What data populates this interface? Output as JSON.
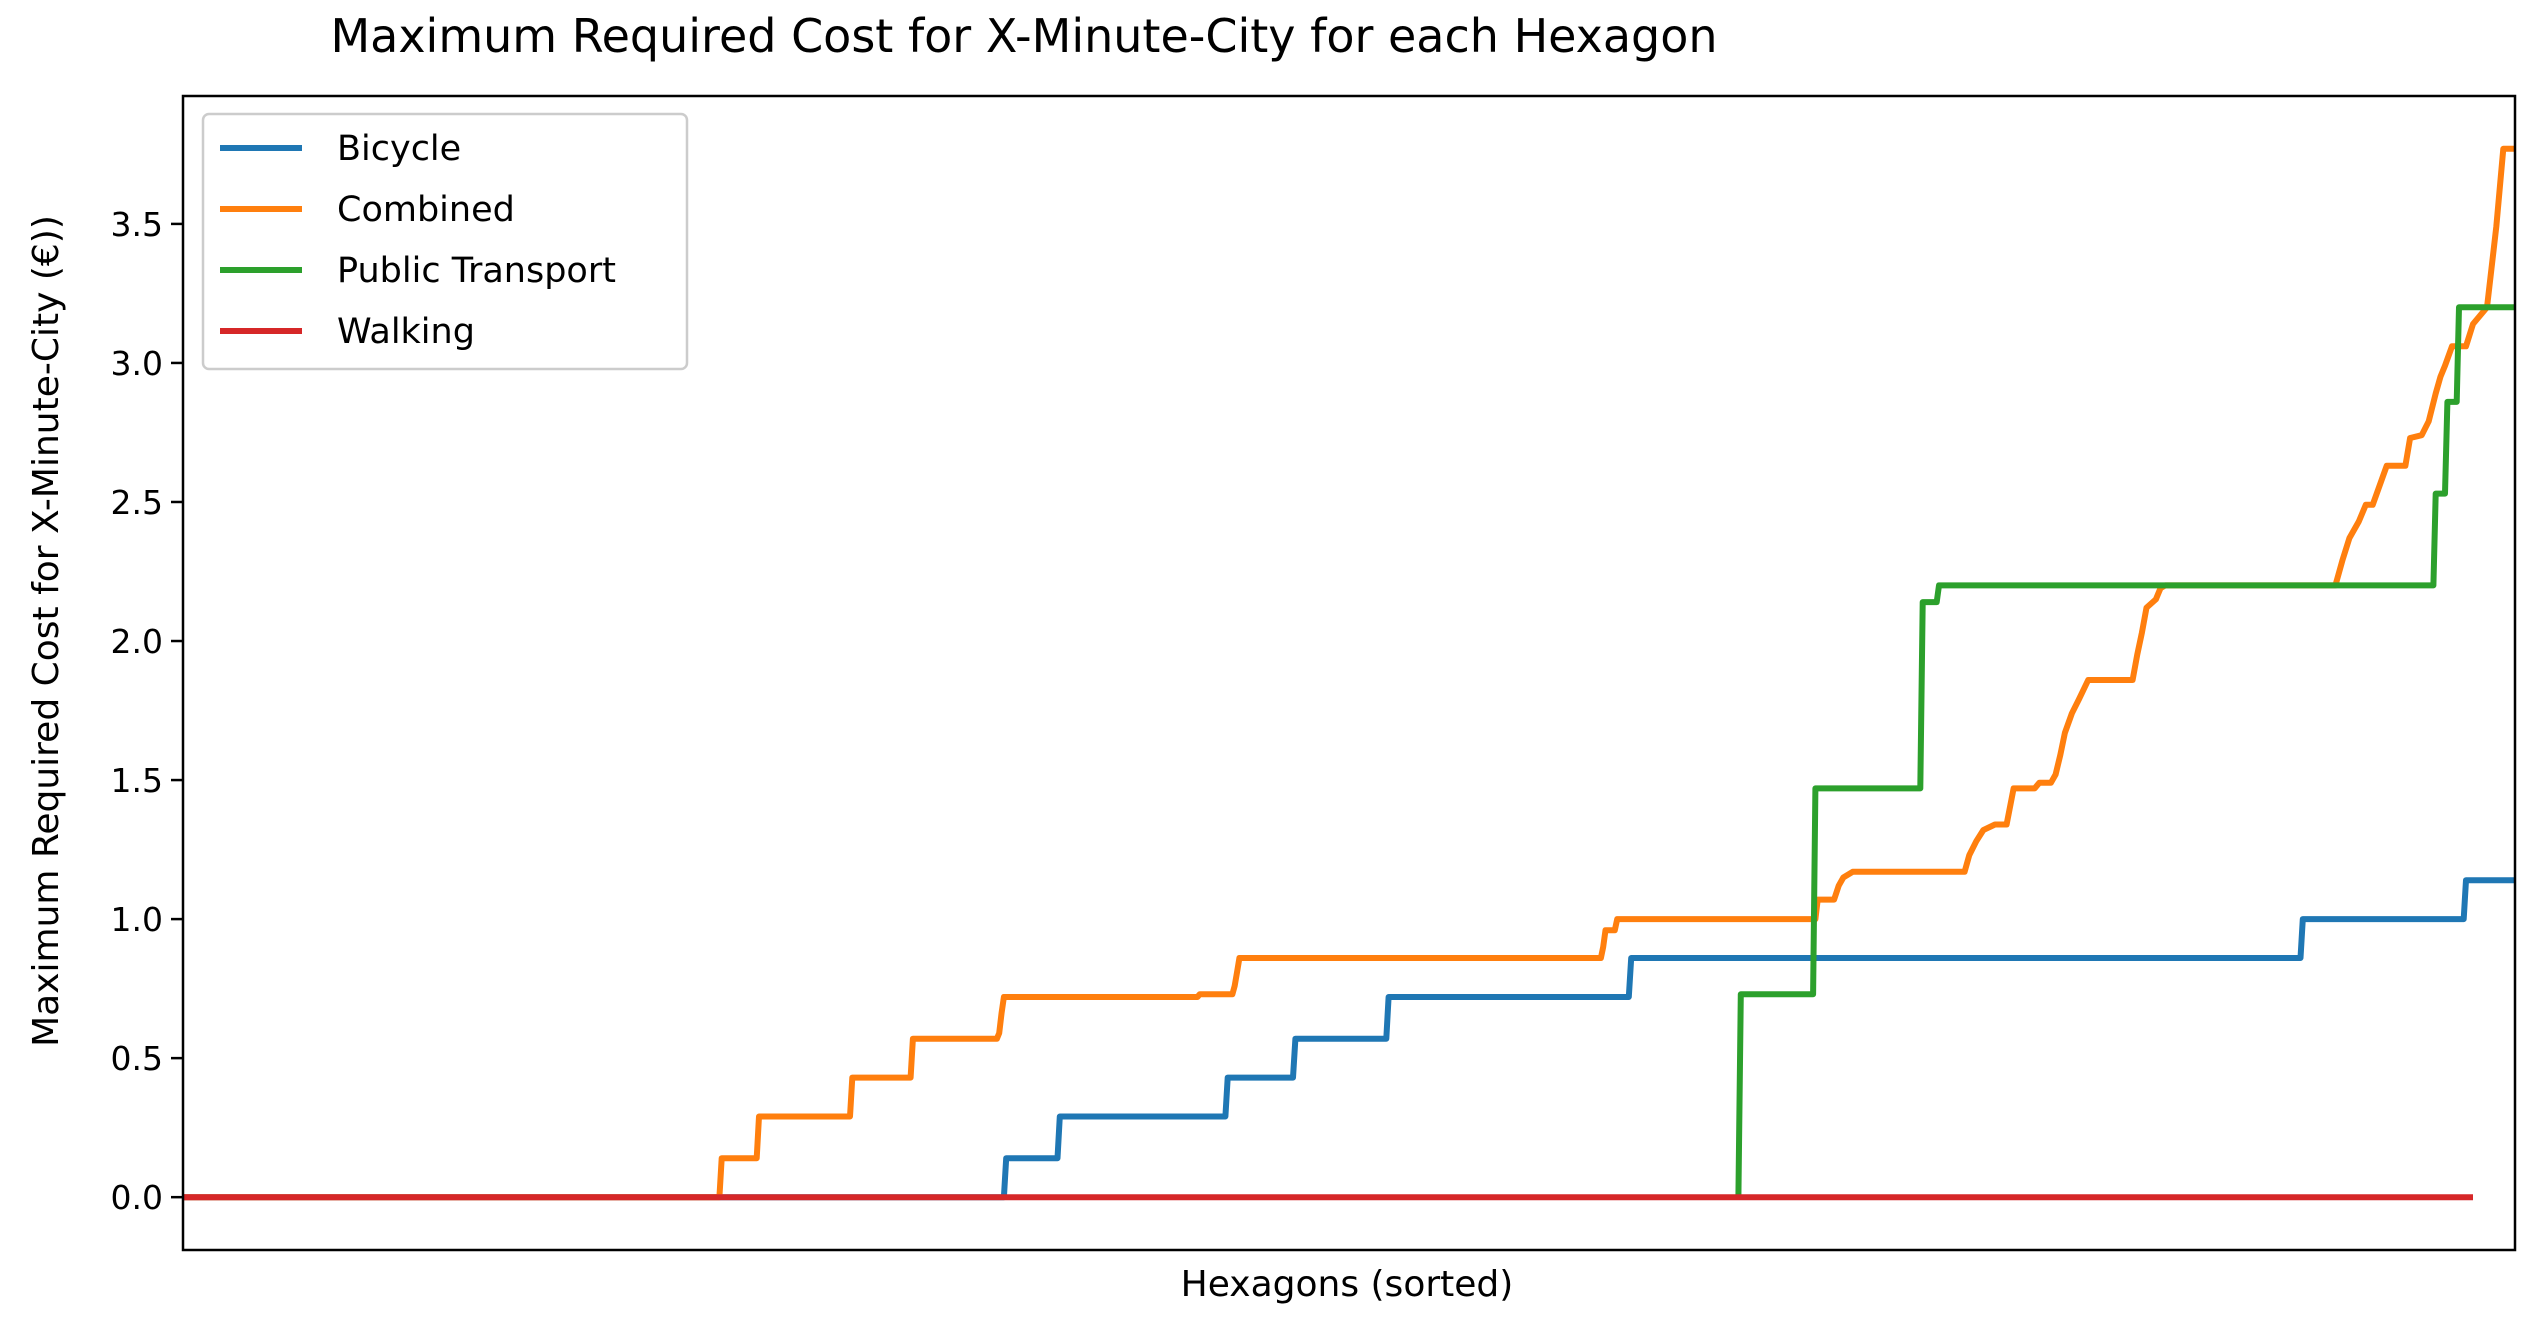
{
  "chart_data": {
    "type": "line",
    "title": "Maximum Required Cost for X-Minute-City for each Hexagon",
    "xlabel": "Hexagons (sorted)",
    "ylabel": "Maximum Required Cost for X-Minute-City (€))",
    "xlim": [
      0,
      1000
    ],
    "ylim": [
      -0.19,
      3.96
    ],
    "x_ticks_shown": false,
    "y_ticks": [
      {
        "value": 0.0,
        "label": "0.0"
      },
      {
        "value": 0.5,
        "label": "0.5"
      },
      {
        "value": 1.0,
        "label": "1.0"
      },
      {
        "value": 1.5,
        "label": "1.5"
      },
      {
        "value": 2.0,
        "label": "2.0"
      },
      {
        "value": 2.5,
        "label": "2.5"
      },
      {
        "value": 3.0,
        "label": "3.0"
      },
      {
        "value": 3.5,
        "label": "3.5"
      }
    ],
    "grid": false,
    "legend_position": "upper-left",
    "series": [
      {
        "name": "Bicycle",
        "color": "#1f77b4",
        "points": [
          [
            0,
            0
          ],
          [
            352,
            0
          ],
          [
            353,
            0.14
          ],
          [
            375,
            0.14
          ],
          [
            376,
            0.29
          ],
          [
            447,
            0.29
          ],
          [
            448,
            0.43
          ],
          [
            476,
            0.43
          ],
          [
            477,
            0.57
          ],
          [
            516,
            0.57
          ],
          [
            517,
            0.72
          ],
          [
            620,
            0.72
          ],
          [
            621,
            0.86
          ],
          [
            908,
            0.86
          ],
          [
            909,
            1.0
          ],
          [
            978,
            1.0
          ],
          [
            979,
            1.14
          ],
          [
            1000,
            1.14
          ]
        ]
      },
      {
        "name": "Combined",
        "color": "#ff7f0e",
        "points": [
          [
            0,
            0
          ],
          [
            230,
            0
          ],
          [
            231,
            0.14
          ],
          [
            246,
            0.14
          ],
          [
            247,
            0.29
          ],
          [
            286,
            0.29
          ],
          [
            287,
            0.43
          ],
          [
            312,
            0.43
          ],
          [
            313,
            0.57
          ],
          [
            349,
            0.57
          ],
          [
            350,
            0.59
          ],
          [
            351,
            0.66
          ],
          [
            352,
            0.72
          ],
          [
            435,
            0.72
          ],
          [
            436,
            0.73
          ],
          [
            450,
            0.73
          ],
          [
            451,
            0.76
          ],
          [
            452,
            0.81
          ],
          [
            453,
            0.86
          ],
          [
            608,
            0.86
          ],
          [
            609,
            0.9
          ],
          [
            610,
            0.96
          ],
          [
            614,
            0.96
          ],
          [
            615,
            1.0
          ],
          [
            700,
            1.0
          ],
          [
            701,
            1.07
          ],
          [
            708,
            1.07
          ],
          [
            710,
            1.12
          ],
          [
            712,
            1.15
          ],
          [
            716,
            1.17
          ],
          [
            764,
            1.17
          ],
          [
            766,
            1.23
          ],
          [
            769,
            1.28
          ],
          [
            772,
            1.32
          ],
          [
            777,
            1.34
          ],
          [
            782,
            1.34
          ],
          [
            785,
            1.47
          ],
          [
            794,
            1.47
          ],
          [
            796,
            1.49
          ],
          [
            801,
            1.49
          ],
          [
            803,
            1.52
          ],
          [
            805,
            1.59
          ],
          [
            807,
            1.67
          ],
          [
            810,
            1.74
          ],
          [
            813,
            1.79
          ],
          [
            817,
            1.86
          ],
          [
            836,
            1.86
          ],
          [
            838,
            1.95
          ],
          [
            840,
            2.03
          ],
          [
            842,
            2.12
          ],
          [
            846,
            2.15
          ],
          [
            848,
            2.19
          ],
          [
            850,
            2.2
          ],
          [
            923,
            2.2
          ],
          [
            926,
            2.29
          ],
          [
            929,
            2.37
          ],
          [
            933,
            2.43
          ],
          [
            936,
            2.49
          ],
          [
            939,
            2.49
          ],
          [
            942,
            2.56
          ],
          [
            945,
            2.63
          ],
          [
            953,
            2.63
          ],
          [
            955,
            2.73
          ],
          [
            960,
            2.74
          ],
          [
            963,
            2.79
          ],
          [
            966,
            2.89
          ],
          [
            968,
            2.95
          ],
          [
            970,
            2.99
          ],
          [
            973,
            3.06
          ],
          [
            979,
            3.06
          ],
          [
            982,
            3.14
          ],
          [
            988,
            3.2
          ],
          [
            992,
            3.49
          ],
          [
            995,
            3.77
          ],
          [
            1000,
            3.77
          ]
        ]
      },
      {
        "name": "Public Transport",
        "color": "#2ca02c",
        "points": [
          [
            667,
            0
          ],
          [
            668,
            0.73
          ],
          [
            699,
            0.73
          ],
          [
            700,
            1.47
          ],
          [
            745,
            1.47
          ],
          [
            746,
            2.14
          ],
          [
            752,
            2.14
          ],
          [
            753,
            2.2
          ],
          [
            965,
            2.2
          ],
          [
            966,
            2.53
          ],
          [
            970,
            2.53
          ],
          [
            971,
            2.86
          ],
          [
            975,
            2.86
          ],
          [
            976,
            3.2
          ],
          [
            1000,
            3.2
          ]
        ]
      },
      {
        "name": "Walking",
        "color": "#d62728",
        "points": [
          [
            0,
            0
          ],
          [
            982,
            0
          ]
        ]
      }
    ]
  }
}
